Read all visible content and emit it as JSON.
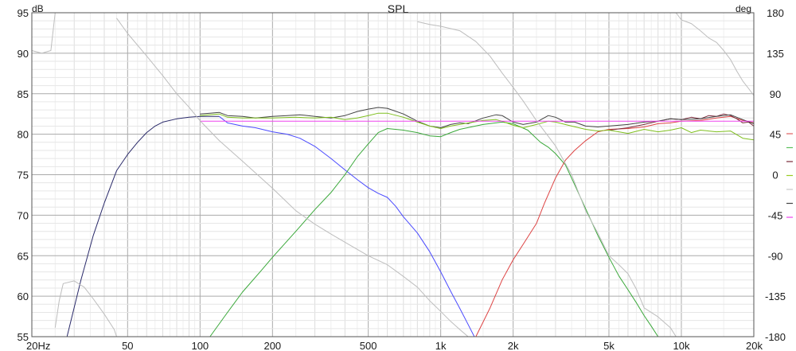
{
  "chart_data": {
    "type": "line",
    "title": "SPL",
    "y_left_label": "dB",
    "y_right_label": "deg",
    "x_scale": "log",
    "xlim": [
      20,
      20000
    ],
    "ylim_left": [
      55,
      95
    ],
    "ylim_right": [
      -180,
      180
    ],
    "grid": true,
    "x_ticks": [
      {
        "v": 20,
        "label": "20Hz"
      },
      {
        "v": 50,
        "label": "50"
      },
      {
        "v": 100,
        "label": "100"
      },
      {
        "v": 200,
        "label": "200"
      },
      {
        "v": 500,
        "label": "500"
      },
      {
        "v": 1000,
        "label": "1k"
      },
      {
        "v": 2000,
        "label": "2k"
      },
      {
        "v": 5000,
        "label": "5k"
      },
      {
        "v": 10000,
        "label": "10k"
      },
      {
        "v": 20000,
        "label": "20k"
      }
    ],
    "y_left_ticks": [
      95,
      90,
      85,
      80,
      75,
      70,
      65,
      60,
      55
    ],
    "y_right_ticks": [
      180,
      135,
      90,
      45,
      0,
      -45,
      -90,
      -135,
      -180
    ],
    "legend_placement": "right",
    "legend_swatches": [
      "#e06060",
      "#5cc05c",
      "#7a2a3a",
      "#99cc22",
      "#c8c8c8",
      "#444444",
      "#ee44ee"
    ],
    "series": [
      {
        "color": "#2a2a6a",
        "axis": "left",
        "points": [
          [
            28,
            55
          ],
          [
            32,
            62
          ],
          [
            36,
            67.5
          ],
          [
            40,
            71.5
          ],
          [
            45,
            75.5
          ],
          [
            50,
            77.5
          ],
          [
            55,
            79
          ],
          [
            60,
            80.2
          ],
          [
            65,
            81
          ],
          [
            70,
            81.5
          ],
          [
            80,
            81.9
          ],
          [
            90,
            82.1
          ],
          [
            100,
            82.2
          ],
          [
            110,
            82.2
          ],
          [
            120,
            82.2
          ]
        ]
      },
      {
        "color": "#4a4aff",
        "axis": "left",
        "points": [
          [
            120,
            82.2
          ],
          [
            130,
            81.4
          ],
          [
            150,
            81
          ],
          [
            170,
            80.8
          ],
          [
            200,
            80.3
          ],
          [
            230,
            80
          ],
          [
            260,
            79.5
          ],
          [
            300,
            78.5
          ],
          [
            350,
            77
          ],
          [
            400,
            75.6
          ],
          [
            450,
            74.4
          ],
          [
            500,
            73.4
          ],
          [
            550,
            72.7
          ],
          [
            600,
            72.2
          ],
          [
            650,
            71.1
          ],
          [
            700,
            69.8
          ],
          [
            800,
            67.8
          ],
          [
            900,
            65.5
          ],
          [
            1000,
            63
          ],
          [
            1100,
            60.6
          ],
          [
            1200,
            58.5
          ],
          [
            1300,
            56.5
          ],
          [
            1380,
            55
          ]
        ]
      },
      {
        "color": "#3aa83a",
        "axis": "left",
        "points": [
          [
            110,
            55
          ],
          [
            130,
            58
          ],
          [
            150,
            60.5
          ],
          [
            180,
            63.2
          ],
          [
            200,
            64.8
          ],
          [
            250,
            68
          ],
          [
            300,
            70.7
          ],
          [
            350,
            72.8
          ],
          [
            400,
            75
          ],
          [
            450,
            77.2
          ],
          [
            500,
            78.8
          ],
          [
            550,
            80.2
          ],
          [
            600,
            80.7
          ],
          [
            700,
            80.5
          ],
          [
            800,
            80.2
          ],
          [
            900,
            79.8
          ],
          [
            1000,
            79.7
          ],
          [
            1100,
            80.2
          ],
          [
            1200,
            80.6
          ],
          [
            1500,
            81.2
          ],
          [
            1800,
            81.5
          ],
          [
            2000,
            81.3
          ],
          [
            2300,
            80.5
          ],
          [
            2600,
            79
          ],
          [
            2800,
            78.4
          ],
          [
            3000,
            77.6
          ],
          [
            3300,
            76.2
          ],
          [
            3600,
            73.8
          ],
          [
            4000,
            70.8
          ],
          [
            4500,
            67.5
          ],
          [
            5000,
            64.8
          ],
          [
            5500,
            62.5
          ],
          [
            6000,
            60.8
          ],
          [
            6500,
            59.2
          ],
          [
            7000,
            57.6
          ],
          [
            7500,
            56.3
          ],
          [
            8000,
            55
          ]
        ]
      },
      {
        "color": "#dd4444",
        "axis": "left",
        "points": [
          [
            1400,
            55
          ],
          [
            1600,
            58.5
          ],
          [
            1800,
            62
          ],
          [
            2000,
            64.5
          ],
          [
            2200,
            66.4
          ],
          [
            2500,
            69
          ],
          [
            2700,
            71.5
          ],
          [
            3000,
            74.6
          ],
          [
            3300,
            76.8
          ],
          [
            3600,
            78
          ],
          [
            4000,
            79.2
          ],
          [
            4500,
            80.3
          ],
          [
            5000,
            80.6
          ],
          [
            6000,
            80.7
          ],
          [
            7000,
            80.9
          ],
          [
            8000,
            81.3
          ],
          [
            9000,
            81.4
          ],
          [
            10000,
            81.6
          ],
          [
            12000,
            81.7
          ],
          [
            14000,
            82
          ],
          [
            16000,
            82.2
          ],
          [
            18000,
            81.7
          ],
          [
            20000,
            81.4
          ]
        ]
      },
      {
        "color": "#7a2a3a",
        "axis": "left",
        "points": [
          [
            5000,
            80.5
          ],
          [
            6000,
            80.8
          ],
          [
            7000,
            81.2
          ],
          [
            8000,
            81.6
          ],
          [
            9000,
            81.9
          ],
          [
            10000,
            81.8
          ],
          [
            11000,
            82.1
          ],
          [
            12000,
            81.9
          ],
          [
            13000,
            82.3
          ],
          [
            14000,
            82.2
          ],
          [
            15000,
            82.5
          ],
          [
            16000,
            82.3
          ],
          [
            17000,
            81.9
          ],
          [
            18000,
            81.4
          ],
          [
            19000,
            81.5
          ],
          [
            20000,
            81
          ]
        ]
      },
      {
        "color": "#444444",
        "axis": "left",
        "points": [
          [
            100,
            82.5
          ],
          [
            110,
            82.6
          ],
          [
            120,
            82.7
          ],
          [
            130,
            82.3
          ],
          [
            150,
            82.2
          ],
          [
            170,
            82
          ],
          [
            200,
            82.2
          ],
          [
            230,
            82.3
          ],
          [
            260,
            82.4
          ],
          [
            300,
            82.2
          ],
          [
            350,
            82
          ],
          [
            400,
            82.3
          ],
          [
            450,
            82.8
          ],
          [
            500,
            83.1
          ],
          [
            550,
            83.3
          ],
          [
            600,
            83.2
          ],
          [
            700,
            82.5
          ],
          [
            800,
            81.6
          ],
          [
            900,
            81
          ],
          [
            1000,
            80.8
          ],
          [
            1100,
            81.2
          ],
          [
            1200,
            81.4
          ],
          [
            1300,
            81.3
          ],
          [
            1500,
            82
          ],
          [
            1700,
            82.4
          ],
          [
            1800,
            82.3
          ],
          [
            2000,
            81.5
          ],
          [
            2200,
            81.2
          ],
          [
            2500,
            81.5
          ],
          [
            2800,
            82.3
          ],
          [
            3000,
            82.1
          ],
          [
            3300,
            81.5
          ],
          [
            3600,
            81.5
          ],
          [
            4000,
            81
          ],
          [
            4500,
            80.9
          ],
          [
            5000,
            81
          ],
          [
            6000,
            81.2
          ],
          [
            7000,
            81.5
          ],
          [
            8000,
            81.6
          ],
          [
            9000,
            81.9
          ],
          [
            10000,
            81.8
          ],
          [
            12000,
            81.9
          ],
          [
            14000,
            82.2
          ],
          [
            16000,
            82.4
          ],
          [
            18000,
            81.8
          ],
          [
            20000,
            81.3
          ]
        ]
      },
      {
        "color": "#7fbf1f",
        "axis": "left",
        "points": [
          [
            100,
            82.3
          ],
          [
            120,
            82.5
          ],
          [
            130,
            82.1
          ],
          [
            150,
            82
          ],
          [
            200,
            82
          ],
          [
            250,
            82.1
          ],
          [
            300,
            82
          ],
          [
            350,
            82.1
          ],
          [
            400,
            81.8
          ],
          [
            450,
            82
          ],
          [
            500,
            82.3
          ],
          [
            550,
            82.6
          ],
          [
            600,
            82.6
          ],
          [
            700,
            82.1
          ],
          [
            800,
            81.5
          ],
          [
            900,
            81
          ],
          [
            1000,
            80.7
          ],
          [
            1100,
            81
          ],
          [
            1200,
            81.2
          ],
          [
            1500,
            81.7
          ],
          [
            1700,
            81.8
          ],
          [
            1800,
            81.6
          ],
          [
            2000,
            81.1
          ],
          [
            2200,
            80.8
          ],
          [
            2500,
            81.2
          ],
          [
            2800,
            81.6
          ],
          [
            3000,
            81.5
          ],
          [
            3500,
            81
          ],
          [
            4000,
            80.6
          ],
          [
            4500,
            80.4
          ],
          [
            5000,
            80.5
          ],
          [
            6000,
            80.1
          ],
          [
            7000,
            80.6
          ],
          [
            8000,
            80.3
          ],
          [
            9000,
            80.5
          ],
          [
            10000,
            80.8
          ],
          [
            11000,
            80.2
          ],
          [
            12000,
            80.5
          ],
          [
            14000,
            80.3
          ],
          [
            16000,
            80.4
          ],
          [
            18000,
            79.5
          ],
          [
            20000,
            79.3
          ]
        ]
      },
      {
        "color": "#ee44ee",
        "axis": "left",
        "points": [
          [
            100,
            81.6
          ],
          [
            20000,
            81.6
          ]
        ]
      },
      {
        "color": "#bdbdbd",
        "axis": "right",
        "points": [
          [
            20,
            138
          ],
          [
            22,
            135
          ],
          [
            24,
            138
          ],
          [
            25,
            180
          ]
        ]
      },
      {
        "color": "#bdbdbd",
        "axis": "right",
        "points": [
          [
            25,
            -170
          ],
          [
            26,
            -140
          ],
          [
            27,
            -121
          ],
          [
            30,
            -118
          ],
          [
            33,
            -125
          ],
          [
            36,
            -138
          ],
          [
            40,
            -155
          ],
          [
            44,
            -172
          ],
          [
            45,
            -180
          ]
        ]
      },
      {
        "color": "#bdbdbd",
        "axis": "right",
        "points": [
          [
            45,
            174
          ],
          [
            50,
            157
          ],
          [
            60,
            132
          ],
          [
            70,
            110
          ],
          [
            80,
            90
          ],
          [
            90,
            75
          ],
          [
            100,
            60
          ],
          [
            120,
            38
          ],
          [
            150,
            15
          ],
          [
            200,
            -15
          ],
          [
            250,
            -40
          ],
          [
            300,
            -55
          ],
          [
            350,
            -66
          ],
          [
            400,
            -75
          ],
          [
            500,
            -90
          ],
          [
            600,
            -100
          ],
          [
            700,
            -113
          ],
          [
            800,
            -125
          ],
          [
            900,
            -140
          ],
          [
            1000,
            -152
          ],
          [
            1100,
            -163
          ],
          [
            1200,
            -172
          ],
          [
            1300,
            -180
          ]
        ]
      },
      {
        "color": "#bdbdbd",
        "axis": "right",
        "points": [
          [
            800,
            170
          ],
          [
            900,
            167
          ],
          [
            1000,
            165
          ],
          [
            1200,
            160
          ],
          [
            1400,
            148
          ],
          [
            1600,
            132
          ],
          [
            1800,
            113
          ],
          [
            2000,
            97
          ],
          [
            2200,
            82
          ],
          [
            2500,
            60
          ],
          [
            3000,
            32
          ],
          [
            3500,
            0
          ],
          [
            4000,
            -40
          ],
          [
            4500,
            -65
          ],
          [
            5000,
            -90
          ],
          [
            5500,
            -100
          ],
          [
            6000,
            -110
          ],
          [
            6500,
            -127
          ],
          [
            7000,
            -148
          ],
          [
            8000,
            -158
          ],
          [
            9000,
            -170
          ],
          [
            9500,
            -180
          ]
        ]
      },
      {
        "color": "#bdbdbd",
        "axis": "right",
        "points": [
          [
            9500,
            180
          ],
          [
            10000,
            172
          ],
          [
            11000,
            168
          ],
          [
            12000,
            160
          ],
          [
            13000,
            152
          ],
          [
            14000,
            147
          ],
          [
            15000,
            138
          ],
          [
            16000,
            128
          ],
          [
            17000,
            115
          ],
          [
            18000,
            104
          ],
          [
            19000,
            96
          ],
          [
            20000,
            88
          ]
        ]
      }
    ]
  }
}
